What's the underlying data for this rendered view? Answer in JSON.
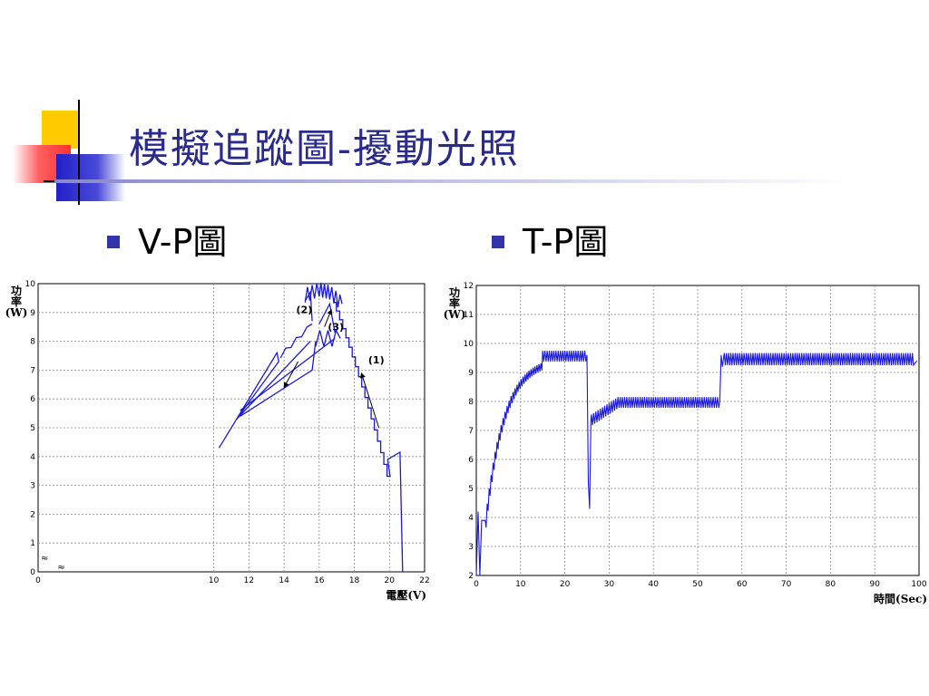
{
  "slide": {
    "title": "模擬追蹤圖-擾動光照",
    "bullets": [
      {
        "label": "V-P圖"
      },
      {
        "label": "T-P圖"
      }
    ],
    "colors": {
      "title": "#2a2a8c",
      "bullet": "#3333aa",
      "trace": "#1a1ad6",
      "deco_yellow": "#ffcc00",
      "deco_red": "#ff4040",
      "deco_blue": "#2a2ad0"
    }
  },
  "chart_data": [
    {
      "type": "line",
      "name": "V-P",
      "xlabel": "電壓(V)",
      "ylabel_lines": [
        "功",
        "率",
        "(W)"
      ],
      "xlim": [
        0,
        22
      ],
      "ylim": [
        0,
        10
      ],
      "xticks": [
        0,
        10,
        12,
        14,
        16,
        18,
        20,
        22
      ],
      "yticks": [
        0,
        1,
        2,
        3,
        4,
        5,
        6,
        7,
        8,
        9,
        10
      ],
      "axis_break_symbol": "≈",
      "grid": true,
      "annotations": [
        {
          "text": "(1)",
          "x": 19.5,
          "y": 8.0
        },
        {
          "text": "(2)",
          "x": 15.6,
          "y": 9.9
        },
        {
          "text": "(3)",
          "x": 16.8,
          "y": 8.3
        }
      ]
    },
    {
      "type": "line",
      "name": "T-P",
      "xlabel": "時間(Sec)",
      "ylabel_lines": [
        "功",
        "率",
        "(W)"
      ],
      "xlim": [
        0,
        100
      ],
      "ylim": [
        2,
        12
      ],
      "xticks": [
        0,
        10,
        20,
        30,
        40,
        50,
        60,
        70,
        80,
        90,
        100
      ],
      "yticks": [
        2,
        3,
        4,
        5,
        6,
        7,
        8,
        9,
        10,
        11,
        12
      ],
      "grid": true,
      "segments": [
        {
          "t_start": 0,
          "t_end": 25,
          "power": 9.6
        },
        {
          "t_start": 25,
          "t_end": 55,
          "power": 8.0
        },
        {
          "t_start": 55,
          "t_end": 100,
          "power": 9.5
        }
      ]
    }
  ]
}
